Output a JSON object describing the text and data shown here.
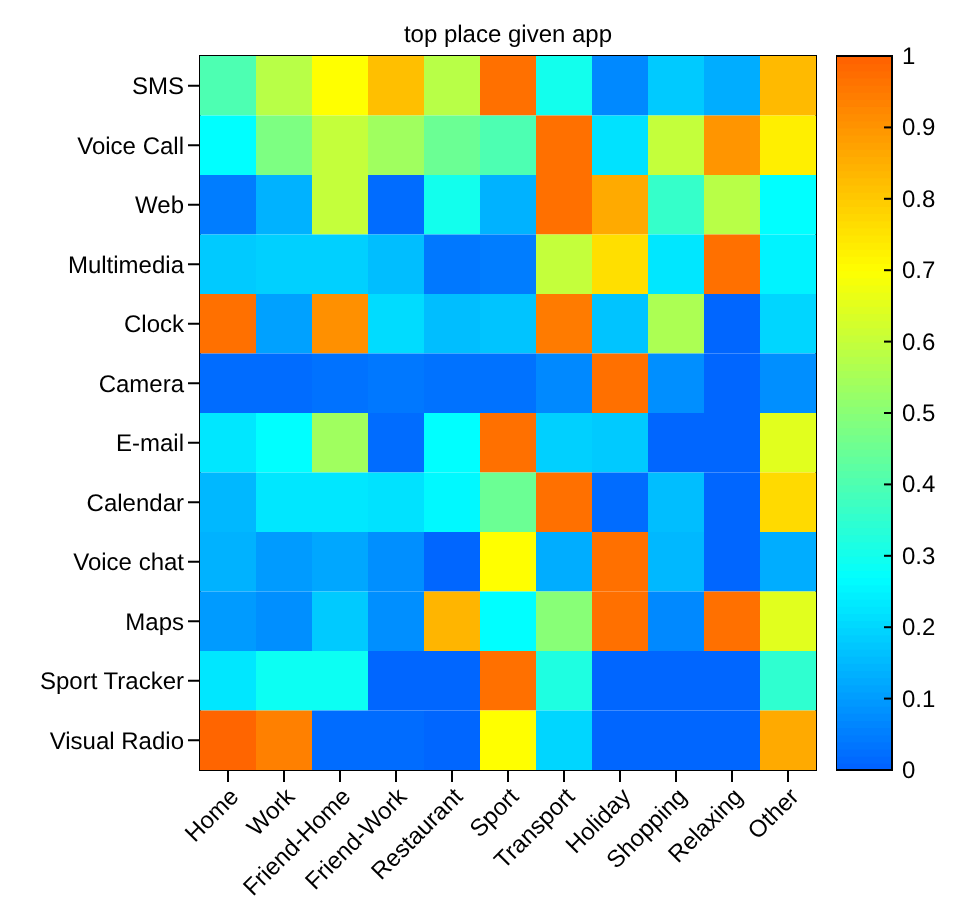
{
  "chart_data": {
    "type": "heatmap",
    "title": "top place given app",
    "categories": [
      "Home",
      "Work",
      "Friend-Home",
      "Friend-Work",
      "Restaurant",
      "Sport",
      "Transport",
      "Holiday",
      "Shopping",
      "Relaxing",
      "Other"
    ],
    "y_categories": [
      "SMS",
      "Voice Call",
      "Web",
      "Multimedia",
      "Clock",
      "Camera",
      "E-mail",
      "Calendar",
      "Voice chat",
      "Maps",
      "Sport Tracker",
      "Visual Radio"
    ],
    "cells": [
      [
        0.4,
        0.58,
        0.7,
        0.82,
        0.58,
        0.97,
        0.3,
        0.07,
        0.18,
        0.13,
        0.83
      ],
      [
        0.27,
        0.48,
        0.6,
        0.54,
        0.45,
        0.4,
        0.97,
        0.22,
        0.6,
        0.9,
        0.73
      ],
      [
        0.05,
        0.14,
        0.6,
        0.02,
        0.3,
        0.14,
        0.97,
        0.86,
        0.36,
        0.58,
        0.27
      ],
      [
        0.18,
        0.19,
        0.19,
        0.16,
        0.04,
        0.05,
        0.6,
        0.76,
        0.23,
        0.97,
        0.25
      ],
      [
        0.97,
        0.11,
        0.91,
        0.21,
        0.16,
        0.17,
        0.95,
        0.17,
        0.56,
        0.01,
        0.2
      ],
      [
        0.02,
        0.02,
        0.03,
        0.04,
        0.03,
        0.03,
        0.07,
        0.97,
        0.08,
        0.01,
        0.08
      ],
      [
        0.23,
        0.27,
        0.54,
        0.02,
        0.27,
        0.97,
        0.19,
        0.18,
        0.01,
        0.01,
        0.65
      ],
      [
        0.15,
        0.23,
        0.23,
        0.22,
        0.26,
        0.45,
        0.97,
        0.02,
        0.16,
        0.01,
        0.77
      ],
      [
        0.14,
        0.1,
        0.12,
        0.08,
        0.01,
        0.7,
        0.13,
        0.97,
        0.15,
        0.01,
        0.13
      ],
      [
        0.1,
        0.08,
        0.18,
        0.08,
        0.84,
        0.27,
        0.5,
        0.97,
        0.07,
        0.97,
        0.65
      ],
      [
        0.23,
        0.29,
        0.29,
        0.01,
        0.01,
        0.97,
        0.32,
        0.01,
        0.01,
        0.01,
        0.35
      ],
      [
        0.99,
        0.94,
        0.02,
        0.02,
        0.01,
        0.7,
        0.2,
        0.01,
        0.01,
        0.01,
        0.86
      ]
    ],
    "clim": [
      0,
      1
    ],
    "cticks": [
      0,
      0.1,
      0.2,
      0.3,
      0.4,
      0.5,
      0.6,
      0.7,
      0.8,
      0.9,
      1
    ]
  }
}
